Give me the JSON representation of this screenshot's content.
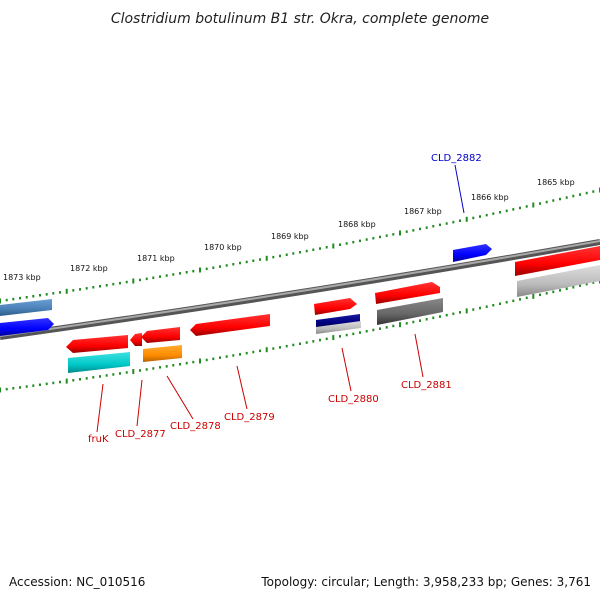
{
  "title": "Clostridium botulinum B1 str. Okra, complete genome",
  "footer": {
    "accession": "Accession: NC_010516",
    "summary": "Topology: circular; Length: 3,958,233 bp; Genes: 3,761"
  },
  "ticks": [
    "1873 kbp",
    "1872 kbp",
    "1871 kbp",
    "1870 kbp",
    "1869 kbp",
    "1868 kbp",
    "1867 kbp",
    "1866 kbp",
    "1865 kbp"
  ],
  "genes": [
    {
      "label": "fruK",
      "color": "#cc0000"
    },
    {
      "label": "CLD_2877",
      "color": "#cc0000"
    },
    {
      "label": "CLD_2878",
      "color": "#cc0000"
    },
    {
      "label": "CLD_2879",
      "color": "#cc0000"
    },
    {
      "label": "CLD_2880",
      "color": "#cc0000"
    },
    {
      "label": "CLD_2881",
      "color": "#cc0000"
    },
    {
      "label": "CLD_2882",
      "color": "#0000cc"
    }
  ],
  "colors": {
    "backbone": "#808080",
    "tick": "#228b22",
    "cds_red": "#ff0000",
    "cds_blue": "#0000ff",
    "cds_steel": "#4a7fb5",
    "cds_cyan": "#00c8c8",
    "cds_orange": "#ff8c00",
    "cds_navy": "#000080",
    "cds_gray": "#bbbbbb",
    "cds_dark_gray": "#666666"
  }
}
